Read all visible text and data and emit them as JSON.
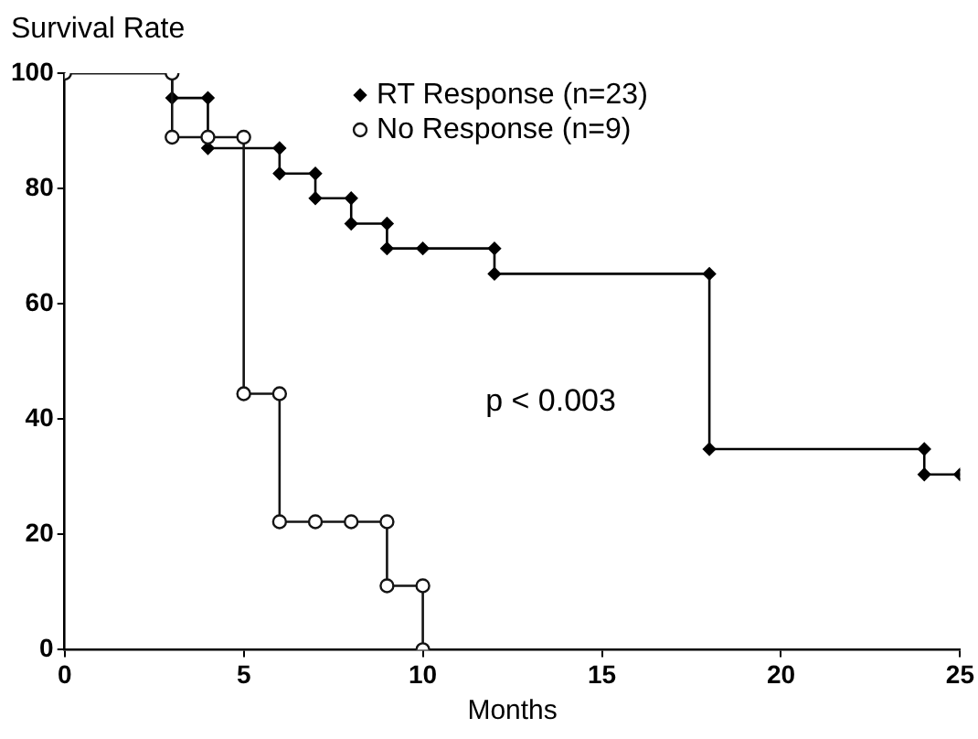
{
  "chart_data": {
    "type": "step",
    "xlabel": "Months",
    "ylabel": "Survival Rate",
    "xlim": [
      0,
      25
    ],
    "xticks": [
      0,
      5,
      10,
      15,
      20,
      25
    ],
    "ylim": [
      0,
      100
    ],
    "yticks": [
      0,
      20,
      40,
      60,
      80,
      100
    ],
    "grid": false,
    "legend": "top right",
    "line_style": "solid",
    "annotations": [
      "p < 0.003"
    ],
    "series": [
      {
        "name": "RT Response (n=23)",
        "color": "#000000",
        "marker": "diamond",
        "x": [
          0,
          3,
          4,
          4,
          6,
          6,
          7,
          7,
          8,
          8,
          9,
          9,
          10,
          12,
          12,
          18,
          18,
          24,
          24,
          25
        ],
        "values": [
          100,
          95.7,
          95.7,
          87,
          87,
          82.6,
          82.6,
          78.3,
          78.3,
          73.9,
          73.9,
          69.6,
          69.6,
          69.6,
          65.2,
          65.2,
          34.8,
          34.8,
          30.4,
          30.4
        ]
      },
      {
        "name": "No Response (n=9)",
        "color": "#141414",
        "marker": "circle",
        "x": [
          0,
          3,
          3,
          4,
          5,
          5,
          6,
          6,
          7,
          8,
          9,
          9,
          10,
          10
        ],
        "values": [
          100,
          100,
          88.9,
          88.9,
          88.9,
          44.4,
          44.4,
          22.2,
          22.2,
          22.2,
          22.2,
          11.1,
          11.1,
          0
        ]
      }
    ]
  }
}
